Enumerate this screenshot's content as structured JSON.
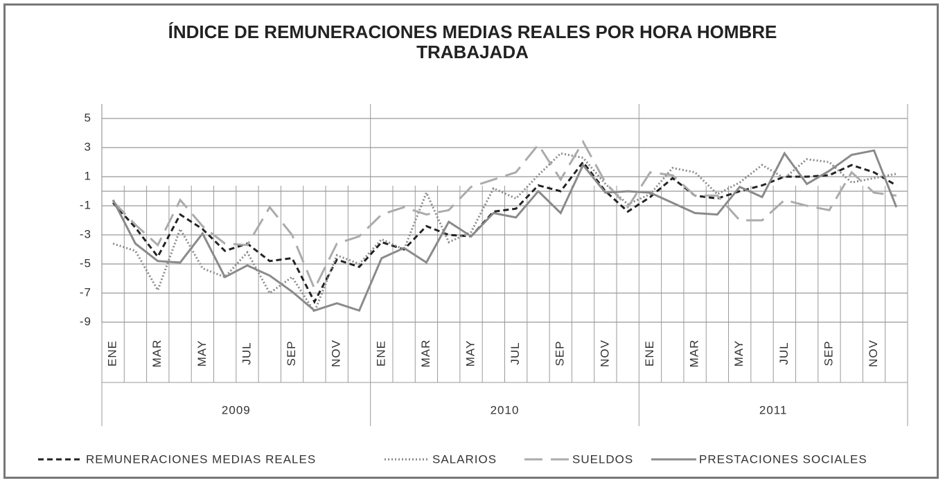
{
  "chart_data": {
    "type": "line",
    "title": "ÍNDICE DE REMUNERACIONES MEDIAS REALES POR HORA HOMBRE TRABAJADA",
    "categories": [
      "ENE",
      null,
      "MAR",
      null,
      "MAY",
      null,
      "JUL",
      null,
      "SEP",
      null,
      "NOV",
      null,
      "ENE",
      null,
      "MAR",
      null,
      "MAY",
      null,
      "JUL",
      null,
      "SEP",
      null,
      "NOV",
      null,
      "ENE",
      null,
      "MAR",
      null,
      "MAY",
      null,
      "JUL",
      null,
      "SEP",
      null,
      "NOV",
      null
    ],
    "groups": [
      "2009",
      "2010",
      "2011"
    ],
    "ylim": [
      -9,
      6
    ],
    "yticks": [
      -9,
      -7,
      -5,
      -3,
      -1,
      1,
      3,
      5
    ],
    "grid": true,
    "series": [
      {
        "name": "REMUNERACIONES MEDIAS REALES",
        "color": "#222222",
        "dash": "dashed",
        "values": [
          -0.8,
          -2.5,
          -4.5,
          -1.6,
          -2.6,
          -4.1,
          -3.6,
          -4.8,
          -4.6,
          -7.6,
          -4.7,
          -5.2,
          -3.5,
          -4.0,
          -2.4,
          -3.0,
          -3.1,
          -1.4,
          -1.2,
          0.4,
          0.0,
          2.0,
          0.0,
          -1.4,
          -0.4,
          0.9,
          -0.3,
          -0.5,
          0.0,
          0.4,
          1.0,
          1.0,
          1.1,
          1.8,
          1.3,
          0.4
        ]
      },
      {
        "name": "SALARIOS",
        "color": "#8a8a8a",
        "dash": "dotted",
        "values": [
          -3.6,
          -4.1,
          -6.8,
          -2.6,
          -5.3,
          -5.9,
          -4.2,
          -7.0,
          -5.9,
          -8.3,
          -4.4,
          -5.0,
          -3.3,
          -4.0,
          -0.1,
          -3.5,
          -2.8,
          0.2,
          -0.5,
          1.1,
          2.6,
          2.3,
          0.5,
          -0.9,
          -0.2,
          1.6,
          1.3,
          -0.2,
          0.6,
          1.8,
          0.9,
          2.2,
          2.0,
          0.6,
          0.9,
          1.2
        ]
      },
      {
        "name": "SUELDOS",
        "color": "#ababab",
        "dash": "long-dash",
        "values": [
          -0.7,
          -2.3,
          -3.7,
          -0.6,
          -2.4,
          -3.6,
          -3.7,
          -1.1,
          -3.0,
          -6.7,
          -3.6,
          -3.1,
          -1.6,
          -1.1,
          -1.6,
          -1.3,
          0.3,
          0.8,
          1.3,
          3.2,
          0.8,
          3.4,
          0.6,
          -1.1,
          1.3,
          1.1,
          -0.3,
          -0.3,
          -2.0,
          -2.0,
          -0.6,
          -1.0,
          -1.3,
          1.3,
          -0.1,
          -0.3
        ]
      },
      {
        "name": "PRESTACIONES SOCIALES",
        "color": "#8a8a8a",
        "dash": "solid",
        "values": [
          -0.6,
          -3.6,
          -4.8,
          -4.9,
          -2.9,
          -5.9,
          -5.1,
          -5.8,
          -6.9,
          -8.2,
          -7.7,
          -8.2,
          -4.6,
          -3.9,
          -4.9,
          -2.1,
          -3.1,
          -1.5,
          -1.8,
          0.0,
          -1.5,
          1.8,
          -0.1,
          0.0,
          -0.1,
          -0.8,
          -1.5,
          -1.6,
          0.3,
          -0.4,
          2.6,
          0.5,
          1.4,
          2.5,
          2.8,
          -1.1
        ]
      }
    ]
  }
}
